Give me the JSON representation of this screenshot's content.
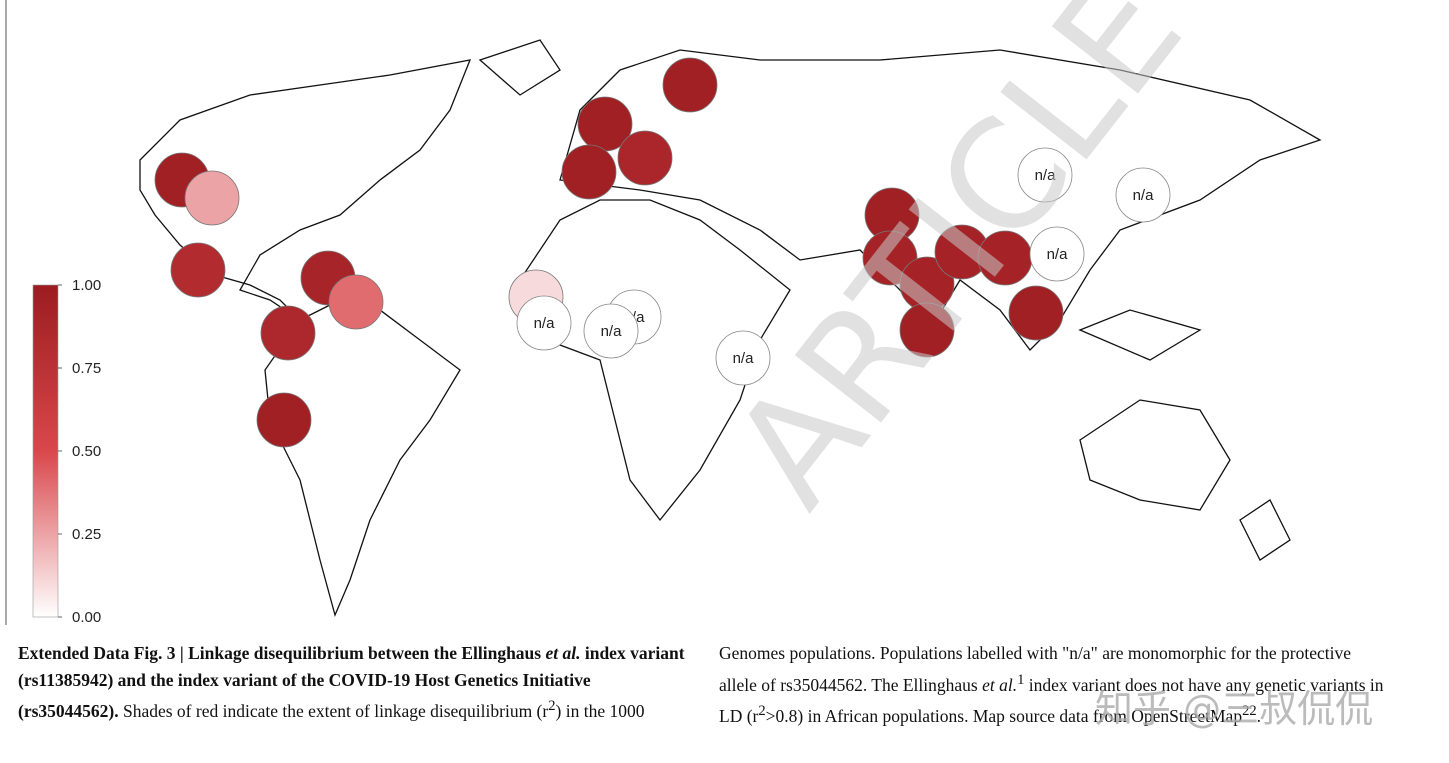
{
  "map": {
    "colorscale": [
      "#ffffff",
      "#d9474c",
      "#9b1c1f"
    ],
    "colorbar": {
      "lim": [
        0,
        1
      ],
      "ticks": [
        {
          "value": 1,
          "label": "1.00"
        },
        {
          "value": 0.75,
          "label": "0.75"
        },
        {
          "value": 0.5,
          "label": "0.50"
        },
        {
          "value": 0.25,
          "label": "0.25"
        },
        {
          "value": 0,
          "label": "0.00"
        }
      ]
    },
    "populations": [
      {
        "value": 0.95,
        "label": null
      },
      {
        "value": 0.25,
        "label": null
      },
      {
        "value": 0.82,
        "label": null
      },
      {
        "value": 0.9,
        "label": null
      },
      {
        "value": 0.4,
        "label": null
      },
      {
        "value": 0.86,
        "label": null
      },
      {
        "value": 0.95,
        "label": null
      },
      {
        "value": 0.1,
        "label": null
      },
      {
        "value": null,
        "label": "n/a"
      },
      {
        "value": null,
        "label": "n/a"
      },
      {
        "value": null,
        "label": "n/a"
      },
      {
        "value": null,
        "label": "n/a"
      },
      {
        "value": 0.95,
        "label": null
      },
      {
        "value": 0.95,
        "label": null
      },
      {
        "value": 0.88,
        "label": null
      },
      {
        "value": 0.95,
        "label": null
      },
      {
        "value": 0.95,
        "label": null
      },
      {
        "value": 0.92,
        "label": null
      },
      {
        "value": 0.92,
        "label": null
      },
      {
        "value": 0.95,
        "label": null
      },
      {
        "value": 0.92,
        "label": null
      },
      {
        "value": 0.92,
        "label": null
      },
      {
        "value": 0.95,
        "label": null
      },
      {
        "value": null,
        "label": "n/a"
      },
      {
        "value": null,
        "label": "n/a"
      },
      {
        "value": null,
        "label": "n/a"
      }
    ]
  },
  "caption": {
    "label": "Extended Data Fig. 3",
    "separator": "|",
    "title": [
      "Linkage disequilibrium between the Ellinghaus ",
      "et al.",
      " index variant (rs11385942) and the index variant of the COVID-19 Host Genetics Initiative (rs35044562)."
    ],
    "body": [
      " Shades of red indicate the extent of linkage disequilibrium (r",
      "2",
      ") in the 1000 Genomes populations. Populations labelled with \"n/a\" are monomorphic for the protective allele of rs35044562. The Ellinghaus ",
      "et al.",
      "1",
      " index variant does not have any genetic variants in LD (r",
      "2",
      ">0.8) in African populations. Map source data from OpenStreetMap",
      "22",
      "."
    ]
  },
  "watermarks": [
    "ARTICLE PREVIEW",
    "知乎 @三叔侃侃"
  ]
}
